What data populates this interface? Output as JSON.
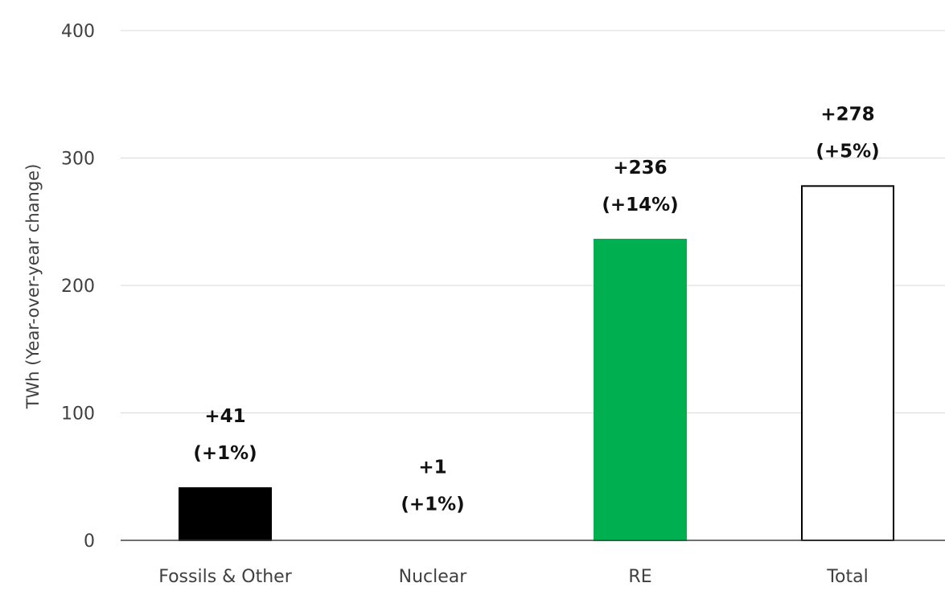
{
  "chart_data": {
    "type": "bar",
    "title": "",
    "xlabel": "",
    "ylabel": "TWh (Year-over-year change)",
    "ylim": [
      0,
      400
    ],
    "yticks": [
      0,
      100,
      200,
      300,
      400
    ],
    "grid": true,
    "legend": "none",
    "categories": [
      "Fossils & Other",
      "Nuclear",
      "RE",
      "Total"
    ],
    "values": [
      41,
      1,
      236,
      278
    ],
    "value_labels": [
      "+41",
      "+1",
      "+236",
      "+278"
    ],
    "percent_labels": [
      "(+1%)",
      "(+1%)",
      "(+14%)",
      "(+5%)"
    ],
    "bar_fills": [
      "#000000",
      "#ffffff",
      "#00b050",
      "#ffffff"
    ],
    "bar_strokes": [
      "#000000",
      "#ffffff",
      "#00b050",
      "#000000"
    ]
  }
}
